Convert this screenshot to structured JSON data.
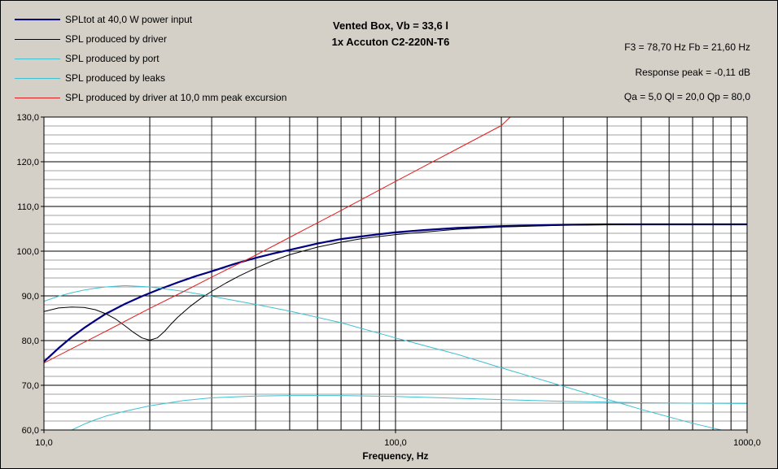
{
  "chart_data": {
    "type": "line",
    "title": "Vented Box, Vb = 33,6 l",
    "subtitle": "1x Accuton C2-220N-T6",
    "xlabel": "Frequency, Hz",
    "ylabel": "",
    "xscale": "log",
    "xlim": [
      10,
      1000
    ],
    "ylim": [
      60,
      130
    ],
    "grid": true,
    "legend_position": "top-left",
    "x_ticks": [
      "10,0",
      "100,0",
      "1000,0"
    ],
    "y_ticks": [
      "60,0",
      "70,0",
      "80,0",
      "90,0",
      "100,0",
      "110,0",
      "120,0",
      "130,0"
    ],
    "series": [
      {
        "name": "SPLtot at 40,0 W power input",
        "color": "#000080",
        "width": 2.2,
        "x": [
          10,
          11,
          12,
          13,
          14,
          15,
          17,
          19,
          21,
          24,
          27,
          30,
          35,
          40,
          45,
          50,
          60,
          70,
          80,
          90,
          100,
          120,
          150,
          200,
          300,
          400,
          500,
          700,
          1000
        ],
        "y": [
          75.3,
          78.3,
          80.8,
          82.8,
          84.5,
          86.0,
          88.2,
          89.9,
          91.3,
          93.0,
          94.4,
          95.5,
          97.2,
          98.5,
          99.5,
          100.3,
          101.7,
          102.7,
          103.3,
          103.8,
          104.2,
          104.7,
          105.2,
          105.6,
          105.9,
          106.0,
          106.0,
          106.0,
          106.0
        ]
      },
      {
        "name": "SPL produced by driver",
        "color": "#000000",
        "width": 1,
        "x": [
          10,
          11,
          12,
          13,
          14,
          15,
          16,
          17,
          18,
          19,
          20,
          21,
          22,
          23,
          24,
          26,
          28,
          30,
          33,
          36,
          40,
          45,
          50,
          60,
          70,
          80,
          100,
          150,
          200,
          300,
          500,
          1000
        ],
        "y": [
          86.5,
          87.3,
          87.5,
          87.4,
          86.9,
          86.0,
          84.8,
          83.3,
          81.8,
          80.6,
          80.1,
          80.6,
          82.0,
          83.7,
          85.2,
          87.6,
          89.5,
          91.0,
          92.9,
          94.5,
          96.2,
          97.9,
          99.2,
          100.9,
          102.0,
          102.8,
          103.7,
          104.9,
          105.4,
          105.8,
          106.0,
          106.0
        ]
      },
      {
        "name": "SPL produced by port",
        "color": "#40c0d0",
        "width": 1,
        "x": [
          12,
          13,
          14,
          15,
          17,
          20,
          25,
          30,
          40,
          50,
          70,
          100,
          150,
          200,
          300,
          500,
          700,
          1000
        ],
        "y": [
          60.0,
          61.3,
          62.3,
          63.1,
          64.2,
          65.4,
          66.6,
          67.2,
          67.6,
          67.7,
          67.7,
          67.5,
          67.1,
          66.8,
          66.4,
          66.1,
          66.0,
          65.9
        ]
      },
      {
        "name": "SPL produced by leaks",
        "color": "#40c0d0",
        "width": 1,
        "x": [
          10,
          11,
          12,
          13,
          14,
          15,
          17,
          20,
          25,
          30,
          40,
          50,
          70,
          100,
          150,
          200,
          300,
          500,
          700,
          900,
          1000
        ],
        "y": [
          88.8,
          89.9,
          90.7,
          91.3,
          91.7,
          92.0,
          92.3,
          92.0,
          91.0,
          89.9,
          88.1,
          86.6,
          84.0,
          80.6,
          76.9,
          73.9,
          69.8,
          64.6,
          61.5,
          59.5,
          59.0
        ]
      },
      {
        "name": "SPL produced by driver at 10,0 mm peak excursion",
        "color": "#e02020",
        "width": 1,
        "x": [
          10,
          12,
          15,
          20,
          25,
          30,
          40,
          50,
          70,
          100,
          150,
          200,
          212
        ],
        "y": [
          75.0,
          78.2,
          82.1,
          87.2,
          91.0,
          94.2,
          99.1,
          103.1,
          109.1,
          115.6,
          122.9,
          128.1,
          130.0
        ]
      }
    ]
  },
  "info": {
    "line1": "F3 = 78,70 Hz  Fb = 21,60 Hz",
    "line2": "Response peak = -0,11 dB",
    "line3": "Qa = 5,0  Ql = 20,0  Qp = 80,0"
  }
}
